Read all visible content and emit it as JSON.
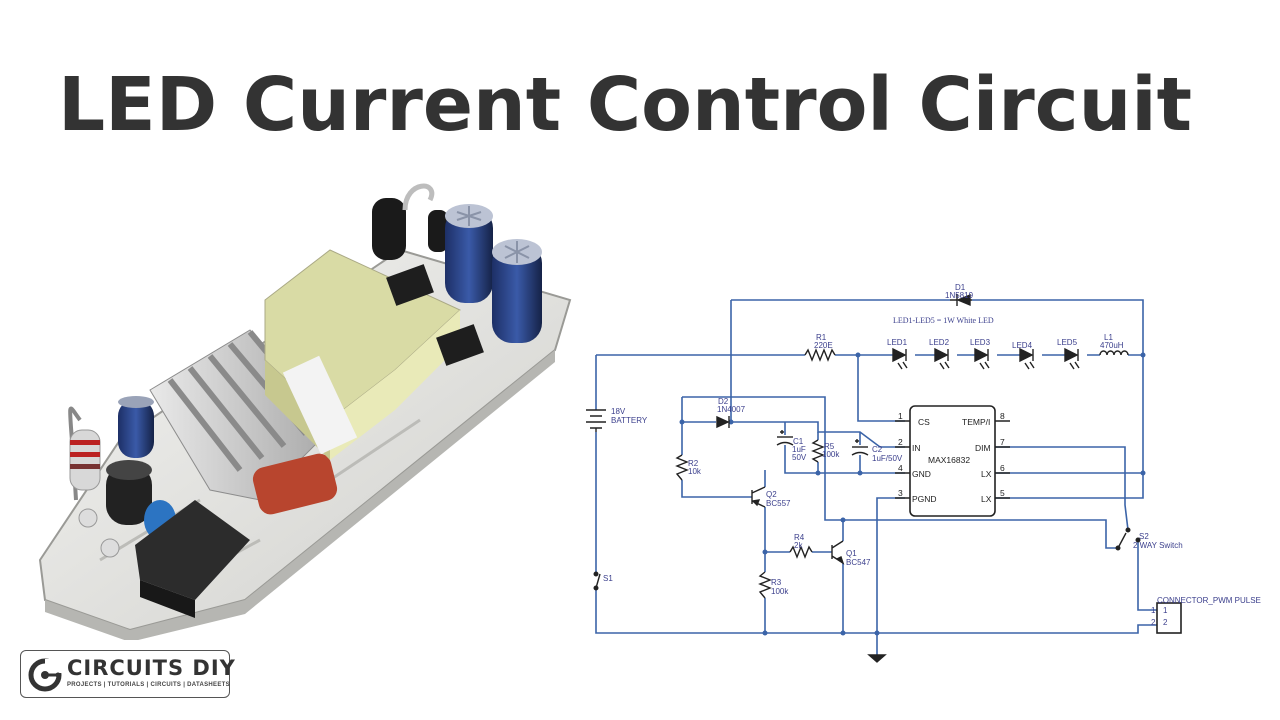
{
  "title": "LED Current Control Circuit",
  "logo": {
    "name": "CIRCUITS DIY",
    "tagline": "PROJECTS | TUTORIALS | CIRCUITS | DATASHEETS"
  },
  "schematic": {
    "note": "LED1-LED5 = 1W White LED",
    "ic": {
      "name": "MAX16832",
      "pins": [
        {
          "num": "1",
          "label": "CS"
        },
        {
          "num": "2",
          "label": "IN"
        },
        {
          "num": "4",
          "label": "GND"
        },
        {
          "num": "3",
          "label": "PGND"
        },
        {
          "num": "8",
          "label": "TEMP/I"
        },
        {
          "num": "7",
          "label": "DIM"
        },
        {
          "num": "6",
          "label": "LX"
        },
        {
          "num": "5",
          "label": "LX"
        }
      ]
    },
    "components": {
      "d1": {
        "ref": "D1",
        "value": "1N5819"
      },
      "r1": {
        "ref": "R1",
        "value": "220E"
      },
      "leds": [
        "LED1",
        "LED2",
        "LED3",
        "LED4",
        "LED5"
      ],
      "l1": {
        "ref": "L1",
        "value": "470uH"
      },
      "battery": {
        "value": "18V",
        "label": "BATTERY"
      },
      "d2": {
        "ref": "D2",
        "value": "1N4007"
      },
      "c1": {
        "ref": "C1",
        "value": "1uF",
        "value2": "50V"
      },
      "r5": {
        "ref": "R5",
        "value": "100k"
      },
      "c2": {
        "ref": "C2",
        "value": "1uF/50V"
      },
      "r2": {
        "ref": "R2",
        "value": "10k"
      },
      "q2": {
        "ref": "Q2",
        "value": "BC557"
      },
      "r4": {
        "ref": "R4",
        "value": "2k"
      },
      "q1": {
        "ref": "Q1",
        "value": "BC547"
      },
      "r3": {
        "ref": "R3",
        "value": "100k"
      },
      "s1": {
        "ref": "S1"
      },
      "s2": {
        "ref": "S2",
        "value": "2 WAY Switch"
      },
      "connector": {
        "label": "CONNECTOR_PWM PULSE",
        "pin1": "1",
        "pin2": "2"
      }
    }
  }
}
